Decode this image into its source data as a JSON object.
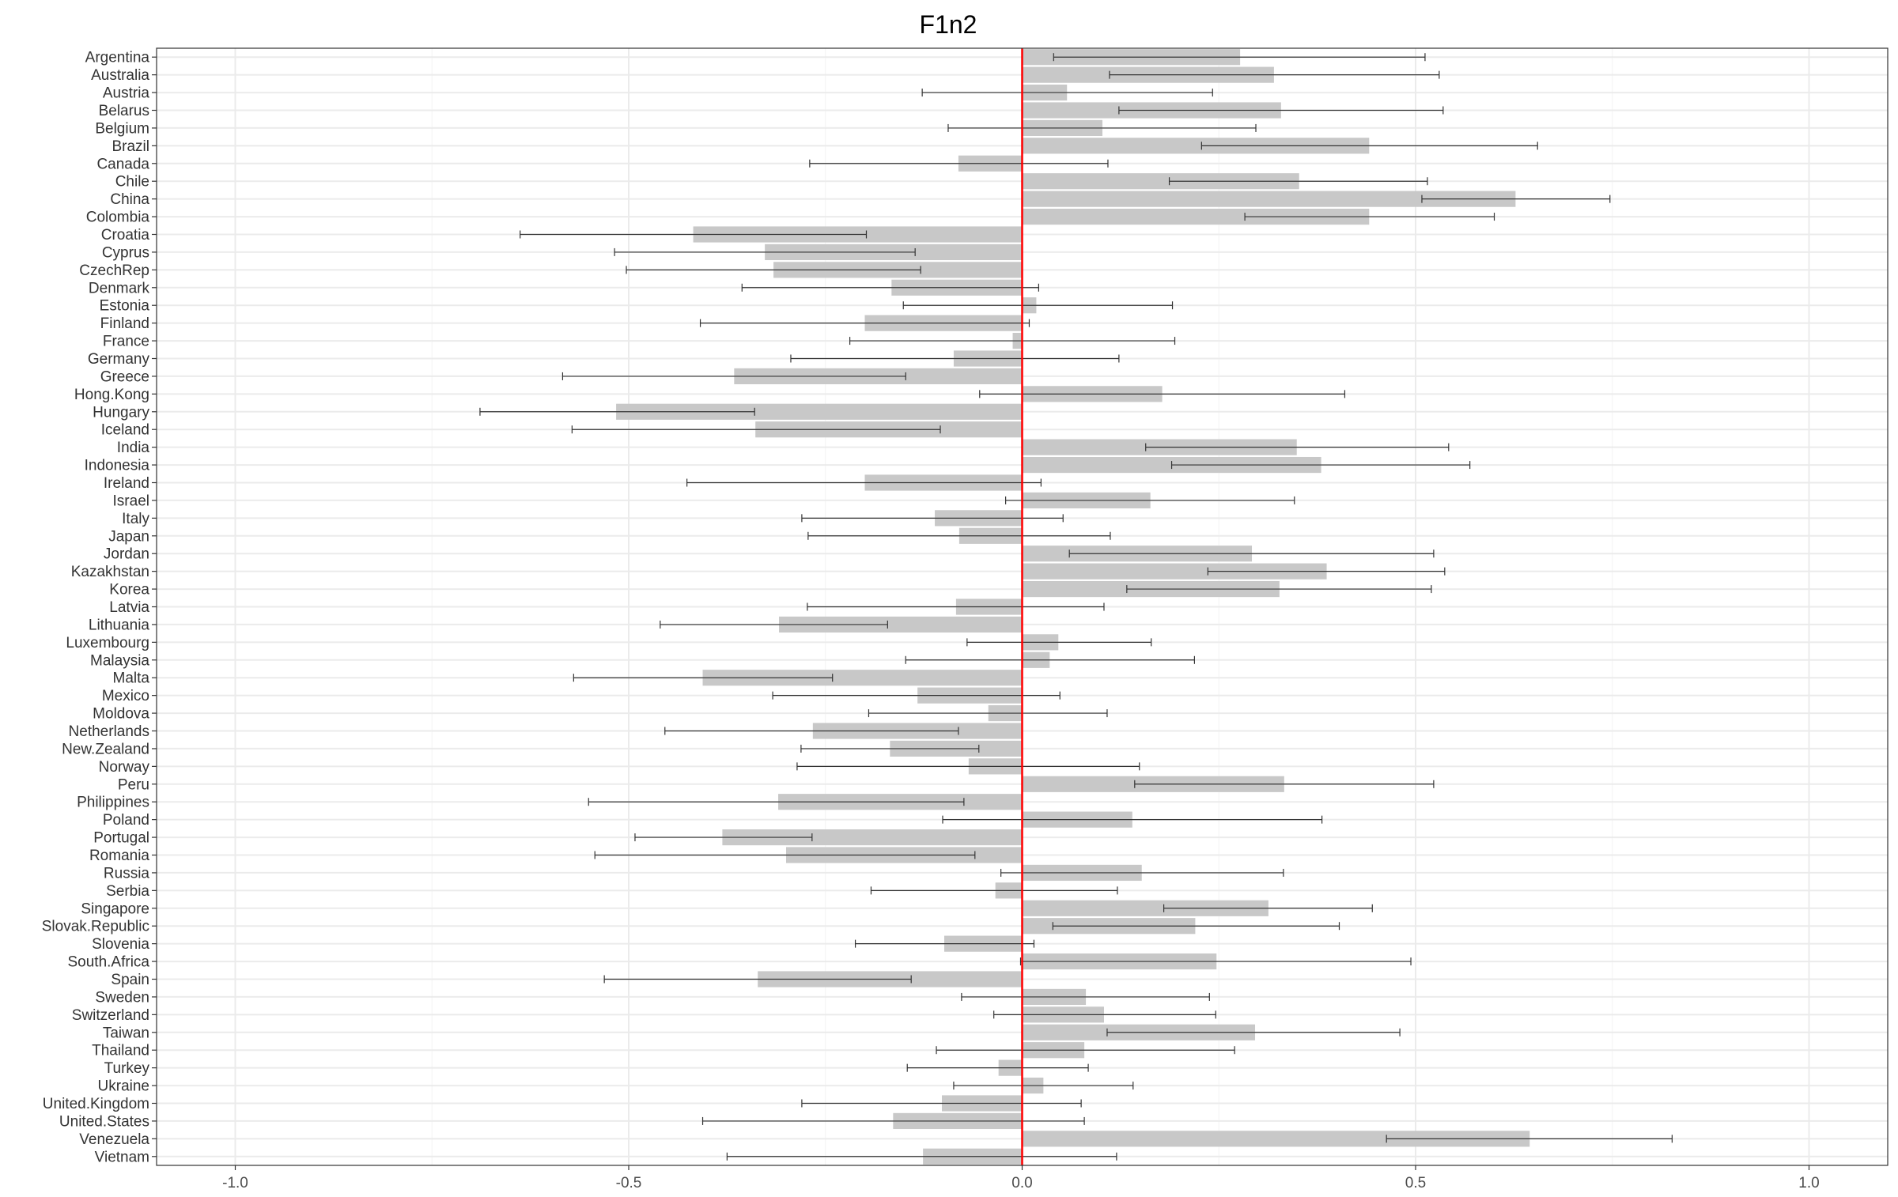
{
  "chart_data": {
    "type": "bar",
    "orientation": "horizontal",
    "title": "F1n2",
    "xlabel": "",
    "ylabel": "",
    "xlim": [
      -1.1,
      1.1
    ],
    "xticks": [
      -1.0,
      -0.5,
      0.0,
      0.5,
      1.0
    ],
    "xtick_labels": [
      "-1.0",
      "-0.5",
      "0.0",
      "0.5",
      "1.0"
    ],
    "grid": true,
    "legend": "none",
    "reference_line": {
      "x": 0.0,
      "color": "#ff0000"
    },
    "bar_color": "#c8c8c8",
    "categories": [
      "Argentina",
      "Australia",
      "Austria",
      "Belarus",
      "Belgium",
      "Brazil",
      "Canada",
      "Chile",
      "China",
      "Colombia",
      "Croatia",
      "Cyprus",
      "CzechRep",
      "Denmark",
      "Estonia",
      "Finland",
      "France",
      "Germany",
      "Greece",
      "Hong.Kong",
      "Hungary",
      "Iceland",
      "India",
      "Indonesia",
      "Ireland",
      "Israel",
      "Italy",
      "Japan",
      "Jordan",
      "Kazakhstan",
      "Korea",
      "Latvia",
      "Lithuania",
      "Luxembourg",
      "Malaysia",
      "Malta",
      "Mexico",
      "Moldova",
      "Netherlands",
      "New.Zealand",
      "Norway",
      "Peru",
      "Philippines",
      "Poland",
      "Portugal",
      "Romania",
      "Russia",
      "Serbia",
      "Singapore",
      "Slovak.Republic",
      "Slovenia",
      "South.Africa",
      "Spain",
      "Sweden",
      "Switzerland",
      "Taiwan",
      "Thailand",
      "Turkey",
      "Ukraine",
      "United.Kingdom",
      "United.States",
      "Venezuela",
      "Vietnam"
    ],
    "values": [
      0.277,
      0.32,
      0.057,
      0.329,
      0.102,
      0.441,
      -0.081,
      0.352,
      0.627,
      0.441,
      -0.418,
      -0.327,
      -0.316,
      -0.166,
      0.018,
      -0.2,
      -0.012,
      -0.087,
      -0.366,
      0.178,
      -0.516,
      -0.339,
      0.349,
      0.38,
      -0.2,
      0.163,
      -0.111,
      -0.08,
      0.292,
      0.387,
      0.327,
      -0.084,
      -0.309,
      0.046,
      0.035,
      -0.406,
      -0.133,
      -0.043,
      -0.266,
      -0.168,
      -0.068,
      0.333,
      -0.31,
      0.14,
      -0.381,
      -0.3,
      0.152,
      -0.034,
      0.313,
      0.22,
      -0.099,
      0.247,
      -0.336,
      0.081,
      0.104,
      0.296,
      0.079,
      -0.03,
      0.027,
      -0.102,
      -0.164,
      0.645,
      -0.126
    ],
    "ci_low": [
      0.04,
      0.111,
      -0.127,
      0.123,
      -0.094,
      0.228,
      -0.27,
      0.187,
      0.508,
      0.283,
      -0.638,
      -0.518,
      -0.503,
      -0.356,
      -0.151,
      -0.409,
      -0.219,
      -0.294,
      -0.584,
      -0.054,
      -0.689,
      -0.572,
      0.157,
      0.19,
      -0.426,
      -0.021,
      -0.28,
      -0.272,
      0.06,
      0.236,
      0.133,
      -0.273,
      -0.46,
      -0.07,
      -0.148,
      -0.57,
      -0.317,
      -0.195,
      -0.454,
      -0.281,
      -0.286,
      0.143,
      -0.551,
      -0.101,
      -0.492,
      -0.543,
      -0.027,
      -0.192,
      0.18,
      0.039,
      -0.212,
      -0.002,
      -0.531,
      -0.077,
      -0.036,
      0.108,
      -0.109,
      -0.146,
      -0.087,
      -0.28,
      -0.406,
      0.463,
      -0.375
    ],
    "ci_high": [
      0.512,
      0.53,
      0.242,
      0.535,
      0.297,
      0.655,
      0.109,
      0.515,
      0.747,
      0.6,
      -0.198,
      -0.136,
      -0.129,
      0.021,
      0.191,
      0.009,
      0.194,
      0.123,
      -0.148,
      0.41,
      -0.34,
      -0.104,
      0.542,
      0.569,
      0.024,
      0.346,
      0.052,
      0.112,
      0.523,
      0.537,
      0.52,
      0.104,
      -0.171,
      0.164,
      0.219,
      -0.241,
      0.048,
      0.108,
      -0.081,
      -0.055,
      0.149,
      0.523,
      -0.074,
      0.381,
      -0.267,
      -0.06,
      0.332,
      0.121,
      0.445,
      0.403,
      0.015,
      0.494,
      -0.141,
      0.238,
      0.246,
      0.48,
      0.27,
      0.084,
      0.141,
      0.075,
      0.079,
      0.826,
      0.12
    ]
  }
}
